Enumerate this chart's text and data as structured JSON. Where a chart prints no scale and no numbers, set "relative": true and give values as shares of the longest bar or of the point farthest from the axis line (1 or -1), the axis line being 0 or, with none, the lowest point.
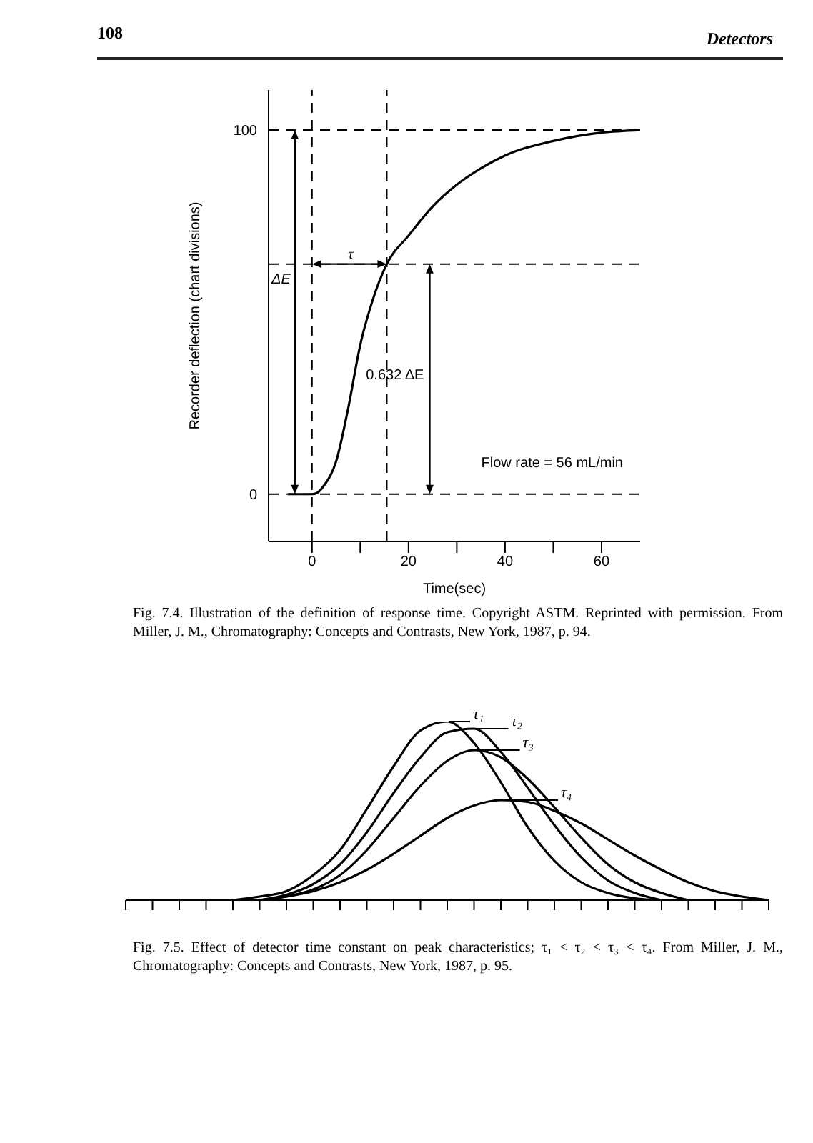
{
  "chart_data": [
    {
      "type": "line",
      "xlabel": "Time(sec)",
      "ylabel": "Recorder deflection (chart divisions)",
      "x": [
        -5,
        0,
        1,
        2.5,
        5,
        7.5,
        10,
        12.5,
        15.5,
        20,
        25,
        30,
        35,
        40,
        50,
        60,
        68
      ],
      "series": [
        {
          "color": "#000000",
          "values": [
            0,
            0,
            0.3,
            2.4,
            9,
            23.6,
            41,
            53,
            63.2,
            71,
            79,
            85,
            89.5,
            93,
            97,
            99.3,
            100
          ]
        }
      ],
      "xlim": [
        -9,
        68
      ],
      "ylim": [
        -13,
        111
      ],
      "xticks": [
        0,
        {
          "value": 10,
          "label": null
        },
        20,
        {
          "value": 30,
          "label": null
        },
        40,
        {
          "value": 50,
          "label": null
        },
        60
      ],
      "yticks": [
        0,
        100
      ],
      "ref_lines": [
        {
          "axis": "y",
          "value": 100,
          "color": "#000000",
          "line_style": "dashed"
        },
        {
          "axis": "y",
          "value": 0,
          "color": "#000000",
          "line_style": "dashed"
        },
        {
          "axis": "x",
          "value": 0,
          "color": "#000000",
          "line_style": "dashed"
        },
        {
          "axis": "y",
          "value": 63.2,
          "color": "#000000",
          "line_style": "dashed"
        },
        {
          "axis": "x",
          "value": 15.5,
          "color": "#000000",
          "line_style": "dashed"
        }
      ],
      "annotations": [
        "108",
        "Detectors",
        "ΔE",
        {
          "text": "τ",
          "x": 8,
          "y": 63.2
        },
        "0.632 ΔE",
        "Flow rate = 56 mL/min",
        "Fig. 7.4. Illustration of the definition of response time. Copyright ASTM. Reprinted with permission. From Miller, J. M., Chromatography: Concepts and Contrasts, New York, 1987, p. 94."
      ],
      "marker": "none",
      "line_style": "solid"
    },
    {
      "type": "line",
      "relative": true,
      "categories": [
        null,
        null,
        null,
        null,
        null,
        null,
        null,
        null,
        null,
        null,
        null,
        null,
        null,
        null,
        null,
        null,
        null,
        null,
        null,
        null,
        null,
        null,
        null,
        null,
        null
      ],
      "series": [
        {
          "name": "τ₁",
          "color": "#000000",
          "values": [
            null,
            null,
            null,
            null,
            0,
            0.02,
            0.05,
            0.14,
            0.28,
            0.51,
            0.75,
            0.95,
            1,
            0.88,
            0.66,
            0.41,
            0.22,
            0.1,
            0.04,
            0.01,
            0,
            null,
            null,
            null,
            null
          ]
        },
        {
          "name": "τ₂",
          "color": "#000000",
          "values": [
            null,
            null,
            null,
            null,
            null,
            0,
            0.03,
            0.09,
            0.2,
            0.38,
            0.6,
            0.8,
            0.94,
            0.96,
            0.83,
            0.63,
            0.42,
            0.24,
            0.11,
            0.04,
            0,
            null,
            null,
            null,
            null
          ]
        },
        {
          "name": "τ₃",
          "color": "#000000",
          "values": [
            null,
            null,
            null,
            null,
            null,
            0,
            0.02,
            0.06,
            0.14,
            0.28,
            0.46,
            0.64,
            0.78,
            0.84,
            0.8,
            0.68,
            0.52,
            0.35,
            0.2,
            0.1,
            0.04,
            0,
            null,
            null,
            null
          ]
        },
        {
          "name": "τ₄",
          "color": "#000000",
          "values": [
            null,
            null,
            null,
            null,
            null,
            0,
            0.02,
            0.05,
            0.1,
            0.17,
            0.26,
            0.36,
            0.46,
            0.53,
            0.56,
            0.55,
            0.5,
            0.43,
            0.34,
            0.25,
            0.17,
            0.1,
            0.05,
            0.02,
            0
          ]
        }
      ],
      "marker": "none",
      "line_style": "solid",
      "legend": "top right",
      "annotations": [
        "Fig. 7.5. Effect of detector time constant on peak characteristics; τ₁ < τ₂ < τ₃ < τ₄. From Miller, J. M., Chromatography: Concepts and Contrasts, New York, 1987, p. 95."
      ]
    }
  ]
}
